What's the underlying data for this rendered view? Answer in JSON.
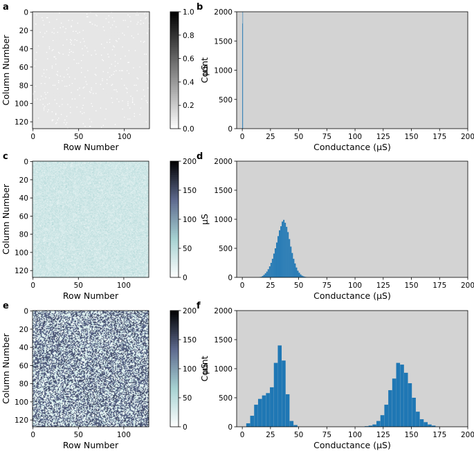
{
  "chart_data": [
    {
      "panel": "a",
      "type": "heatmap",
      "xlabel": "Row Number",
      "ylabel": "Column Number",
      "xticks": [
        "0",
        "50",
        "100"
      ],
      "yticks": [
        "0",
        "20",
        "40",
        "60",
        "80",
        "100",
        "120"
      ],
      "rows": 128,
      "cols": 128,
      "cell_value": 0.1,
      "sparse_value": 0.0,
      "sparse_fraction": 0.02,
      "colormap": [
        "#ffffff",
        "#000000"
      ],
      "colorbar": {
        "label": "µS",
        "range": [
          0,
          1
        ],
        "ticks": [
          "0.0",
          "0.2",
          "0.4",
          "0.6",
          "0.8",
          "1.0"
        ]
      }
    },
    {
      "panel": "b",
      "type": "bar",
      "xlabel": "Conductance (µS)",
      "ylabel": "Count",
      "xlim": [
        -5,
        200
      ],
      "ylim": [
        0,
        2000
      ],
      "xticks": [
        "0",
        "25",
        "50",
        "75",
        "100",
        "125",
        "150",
        "175",
        "200"
      ],
      "yticks": [
        "0",
        "500",
        "1000",
        "1500",
        "2000"
      ],
      "background": "#d3d3d3",
      "bar_color": "#1f77b4",
      "bin_width": 0.25,
      "bins": [
        [
          0.0,
          1800
        ],
        [
          0.25,
          16000
        ]
      ]
    },
    {
      "panel": "c",
      "type": "heatmap",
      "xlabel": "Row Number",
      "ylabel": "Column Number",
      "xticks": [
        "0",
        "50",
        "100"
      ],
      "yticks": [
        "0",
        "20",
        "40",
        "60",
        "80",
        "100",
        "120"
      ],
      "rows": 128,
      "cols": 128,
      "value_mean": 36,
      "value_std": 7,
      "colormap": [
        "#ffffff",
        "#a6d2d2",
        "#5e6a8e",
        "#000000"
      ],
      "colorbar": {
        "label": "µS",
        "range": [
          0,
          200
        ],
        "ticks": [
          "0",
          "50",
          "100",
          "150",
          "200"
        ]
      }
    },
    {
      "panel": "d",
      "type": "bar",
      "xlabel": "Conductance (µS)",
      "ylabel": "",
      "xlim": [
        -5,
        200
      ],
      "ylim": [
        0,
        2000
      ],
      "xticks": [
        "0",
        "25",
        "50",
        "75",
        "100",
        "125",
        "150",
        "175",
        "200"
      ],
      "yticks": [
        "0",
        "500",
        "1000",
        "1500",
        "2000"
      ],
      "background": "#d3d3d3",
      "bar_color": "#1f77b4",
      "bin_width": 1.25,
      "bins": [
        [
          15,
          5
        ],
        [
          16.25,
          10
        ],
        [
          17.5,
          25
        ],
        [
          18.75,
          45
        ],
        [
          20,
          70
        ],
        [
          21.25,
          100
        ],
        [
          22.5,
          140
        ],
        [
          23.75,
          190
        ],
        [
          25,
          250
        ],
        [
          26.25,
          320
        ],
        [
          27.5,
          410
        ],
        [
          28.75,
          500
        ],
        [
          30,
          600
        ],
        [
          31.25,
          710
        ],
        [
          32.5,
          810
        ],
        [
          33.75,
          880
        ],
        [
          35,
          960
        ],
        [
          36.25,
          990
        ],
        [
          37.5,
          940
        ],
        [
          38.75,
          870
        ],
        [
          40,
          780
        ],
        [
          41.25,
          660
        ],
        [
          42.5,
          530
        ],
        [
          43.75,
          420
        ],
        [
          45,
          320
        ],
        [
          46.25,
          240
        ],
        [
          47.5,
          170
        ],
        [
          48.75,
          115
        ],
        [
          50,
          80
        ],
        [
          51.25,
          50
        ],
        [
          52.5,
          30
        ],
        [
          53.75,
          18
        ],
        [
          55,
          10
        ],
        [
          56.25,
          5
        ]
      ]
    },
    {
      "panel": "e",
      "type": "heatmap",
      "xlabel": "Row Number",
      "ylabel": "Column Number",
      "xticks": [
        "0",
        "50",
        "100"
      ],
      "yticks": [
        "0",
        "20",
        "40",
        "60",
        "80",
        "100",
        "120"
      ],
      "rows": 128,
      "cols": 128,
      "low_mean": 25,
      "high_mean": 140,
      "high_fraction": 0.5,
      "colormap": [
        "#ffffff",
        "#a6d2d2",
        "#5e6a8e",
        "#000000"
      ],
      "colorbar": {
        "label": "µS",
        "range": [
          0,
          200
        ],
        "ticks": [
          "0",
          "50",
          "100",
          "150",
          "200"
        ]
      }
    },
    {
      "panel": "f",
      "type": "bar",
      "xlabel": "Conductance (µS)",
      "ylabel": "Count",
      "xlim": [
        -5,
        200
      ],
      "ylim": [
        0,
        2000
      ],
      "xticks": [
        "0",
        "25",
        "50",
        "75",
        "100",
        "125",
        "150",
        "175",
        "200"
      ],
      "yticks": [
        "0",
        "500",
        "1000",
        "1500",
        "2000"
      ],
      "background": "#d3d3d3",
      "bar_color": "#1f77b4",
      "bin_width": 3.5,
      "bins": [
        [
          3.5,
          60
        ],
        [
          7,
          190
        ],
        [
          10.5,
          380
        ],
        [
          14,
          480
        ],
        [
          17.5,
          540
        ],
        [
          21,
          580
        ],
        [
          24.5,
          680
        ],
        [
          28,
          1100
        ],
        [
          31.5,
          1400
        ],
        [
          35,
          1140
        ],
        [
          38.5,
          560
        ],
        [
          42,
          100
        ],
        [
          45.5,
          30
        ],
        [
          108.5,
          10
        ],
        [
          112,
          20
        ],
        [
          115.5,
          40
        ],
        [
          119,
          100
        ],
        [
          122.5,
          200
        ],
        [
          126,
          380
        ],
        [
          129.5,
          630
        ],
        [
          133,
          830
        ],
        [
          136.5,
          1100
        ],
        [
          140,
          1070
        ],
        [
          143.5,
          930
        ],
        [
          147,
          750
        ],
        [
          150.5,
          500
        ],
        [
          154,
          260
        ],
        [
          157.5,
          130
        ],
        [
          161,
          80
        ],
        [
          164.5,
          40
        ],
        [
          168,
          20
        ],
        [
          171.5,
          5
        ]
      ]
    }
  ]
}
